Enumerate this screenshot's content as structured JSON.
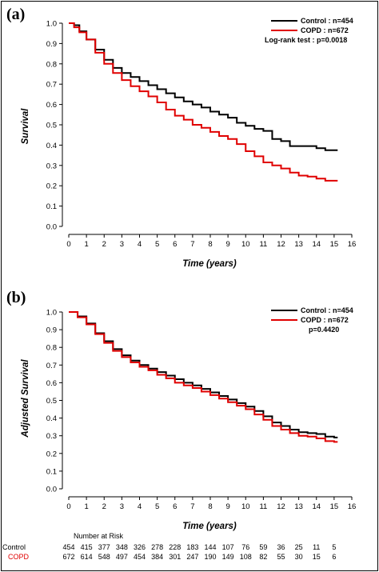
{
  "chart_data": [
    {
      "type": "line",
      "panel_label": "(a)",
      "xlabel": "Time (years)",
      "ylabel": "Survival",
      "xlim": [
        0,
        16
      ],
      "ylim": [
        0,
        1.0
      ],
      "x_ticks": [
        0,
        1,
        2,
        3,
        4,
        5,
        6,
        7,
        8,
        9,
        10,
        11,
        12,
        13,
        14,
        15,
        16
      ],
      "y_ticks": [
        "0.0",
        "0.1",
        "0.2",
        "0.3",
        "0.4",
        "0.5",
        "0.6",
        "0.7",
        "0.8",
        "0.9",
        "1.0"
      ],
      "legend": {
        "position": "top-right",
        "entries": [
          "Control : n=454",
          "COPD : n=672"
        ],
        "stat_text": "Log-rank test : p=0.0018"
      },
      "series": [
        {
          "name": "Control : n=454",
          "color": "#000000",
          "x": [
            0,
            0.3,
            0.6,
            1,
            1.5,
            2,
            2.5,
            3,
            3.5,
            4,
            4.5,
            5,
            5.5,
            6,
            6.5,
            7,
            7.5,
            8,
            8.5,
            9,
            9.5,
            10,
            10.5,
            11,
            11.5,
            12,
            12.5,
            13,
            13.5,
            14,
            14.5,
            15,
            15.2
          ],
          "y": [
            1.0,
            0.99,
            0.96,
            0.92,
            0.87,
            0.82,
            0.78,
            0.755,
            0.735,
            0.715,
            0.695,
            0.675,
            0.655,
            0.635,
            0.615,
            0.6,
            0.585,
            0.565,
            0.55,
            0.535,
            0.51,
            0.495,
            0.48,
            0.47,
            0.43,
            0.42,
            0.395,
            0.395,
            0.395,
            0.385,
            0.375,
            0.375,
            0.375
          ]
        },
        {
          "name": "COPD : n=672",
          "color": "#e00000",
          "x": [
            0,
            0.3,
            0.6,
            1,
            1.5,
            2,
            2.5,
            3,
            3.5,
            4,
            4.5,
            5,
            5.5,
            6,
            6.5,
            7,
            7.5,
            8,
            8.5,
            9,
            9.5,
            10,
            10.5,
            11,
            11.5,
            12,
            12.5,
            13,
            13.5,
            14,
            14.5,
            15,
            15.2
          ],
          "y": [
            1.0,
            0.98,
            0.955,
            0.92,
            0.855,
            0.8,
            0.755,
            0.72,
            0.69,
            0.665,
            0.64,
            0.61,
            0.575,
            0.545,
            0.525,
            0.5,
            0.485,
            0.465,
            0.445,
            0.43,
            0.405,
            0.37,
            0.345,
            0.315,
            0.3,
            0.285,
            0.265,
            0.25,
            0.245,
            0.235,
            0.225,
            0.225,
            0.225
          ]
        }
      ]
    },
    {
      "type": "line",
      "panel_label": "(b)",
      "xlabel": "Time (years)",
      "ylabel": "Adjusted Survival",
      "xlim": [
        0,
        16
      ],
      "ylim": [
        0,
        1.0
      ],
      "x_ticks": [
        0,
        1,
        2,
        3,
        4,
        5,
        6,
        7,
        8,
        9,
        10,
        11,
        12,
        13,
        14,
        15,
        16
      ],
      "y_ticks": [
        "0.0",
        "0.1",
        "0.2",
        "0.3",
        "0.4",
        "0.5",
        "0.6",
        "0.7",
        "0.8",
        "0.9",
        "1.0"
      ],
      "legend": {
        "position": "top-right",
        "entries": [
          "Control : n=454",
          "COPD : n=672"
        ],
        "stat_text": "p=0.4420"
      },
      "series": [
        {
          "name": "Control : n=454",
          "color": "#000000",
          "x": [
            0,
            0.5,
            1,
            1.5,
            2,
            2.5,
            3,
            3.5,
            4,
            4.5,
            5,
            5.5,
            6,
            6.5,
            7,
            7.5,
            8,
            8.5,
            9,
            9.5,
            10,
            10.5,
            11,
            11.5,
            12,
            12.5,
            13,
            13.5,
            14,
            14.5,
            15,
            15.2
          ],
          "y": [
            1.0,
            0.975,
            0.935,
            0.88,
            0.835,
            0.79,
            0.755,
            0.725,
            0.7,
            0.68,
            0.66,
            0.64,
            0.62,
            0.6,
            0.585,
            0.565,
            0.545,
            0.525,
            0.505,
            0.485,
            0.465,
            0.44,
            0.41,
            0.375,
            0.355,
            0.335,
            0.32,
            0.315,
            0.31,
            0.295,
            0.29,
            0.29
          ]
        },
        {
          "name": "COPD : n=672",
          "color": "#e00000",
          "x": [
            0,
            0.5,
            1,
            1.5,
            2,
            2.5,
            3,
            3.5,
            4,
            4.5,
            5,
            5.5,
            6,
            6.5,
            7,
            7.5,
            8,
            8.5,
            9,
            9.5,
            10,
            10.5,
            11,
            11.5,
            12,
            12.5,
            13,
            13.5,
            14,
            14.5,
            15,
            15.2
          ],
          "y": [
            1.0,
            0.97,
            0.93,
            0.875,
            0.825,
            0.78,
            0.745,
            0.715,
            0.69,
            0.67,
            0.645,
            0.625,
            0.6,
            0.585,
            0.57,
            0.55,
            0.53,
            0.51,
            0.49,
            0.47,
            0.45,
            0.42,
            0.39,
            0.355,
            0.335,
            0.315,
            0.3,
            0.295,
            0.285,
            0.27,
            0.265,
            0.265
          ]
        }
      ]
    }
  ],
  "risk_table": {
    "title": "Number at Risk",
    "rows": [
      {
        "label": "Control",
        "color": "#000000",
        "values": [
          "454",
          "415",
          "377",
          "348",
          "326",
          "278",
          "228",
          "183",
          "144",
          "107",
          "76",
          "59",
          "36",
          "25",
          "11",
          "5"
        ]
      },
      {
        "label": "COPD",
        "color": "#e00000",
        "values": [
          "672",
          "614",
          "548",
          "497",
          "454",
          "384",
          "301",
          "247",
          "190",
          "149",
          "108",
          "82",
          "55",
          "30",
          "15",
          "6"
        ]
      }
    ]
  }
}
